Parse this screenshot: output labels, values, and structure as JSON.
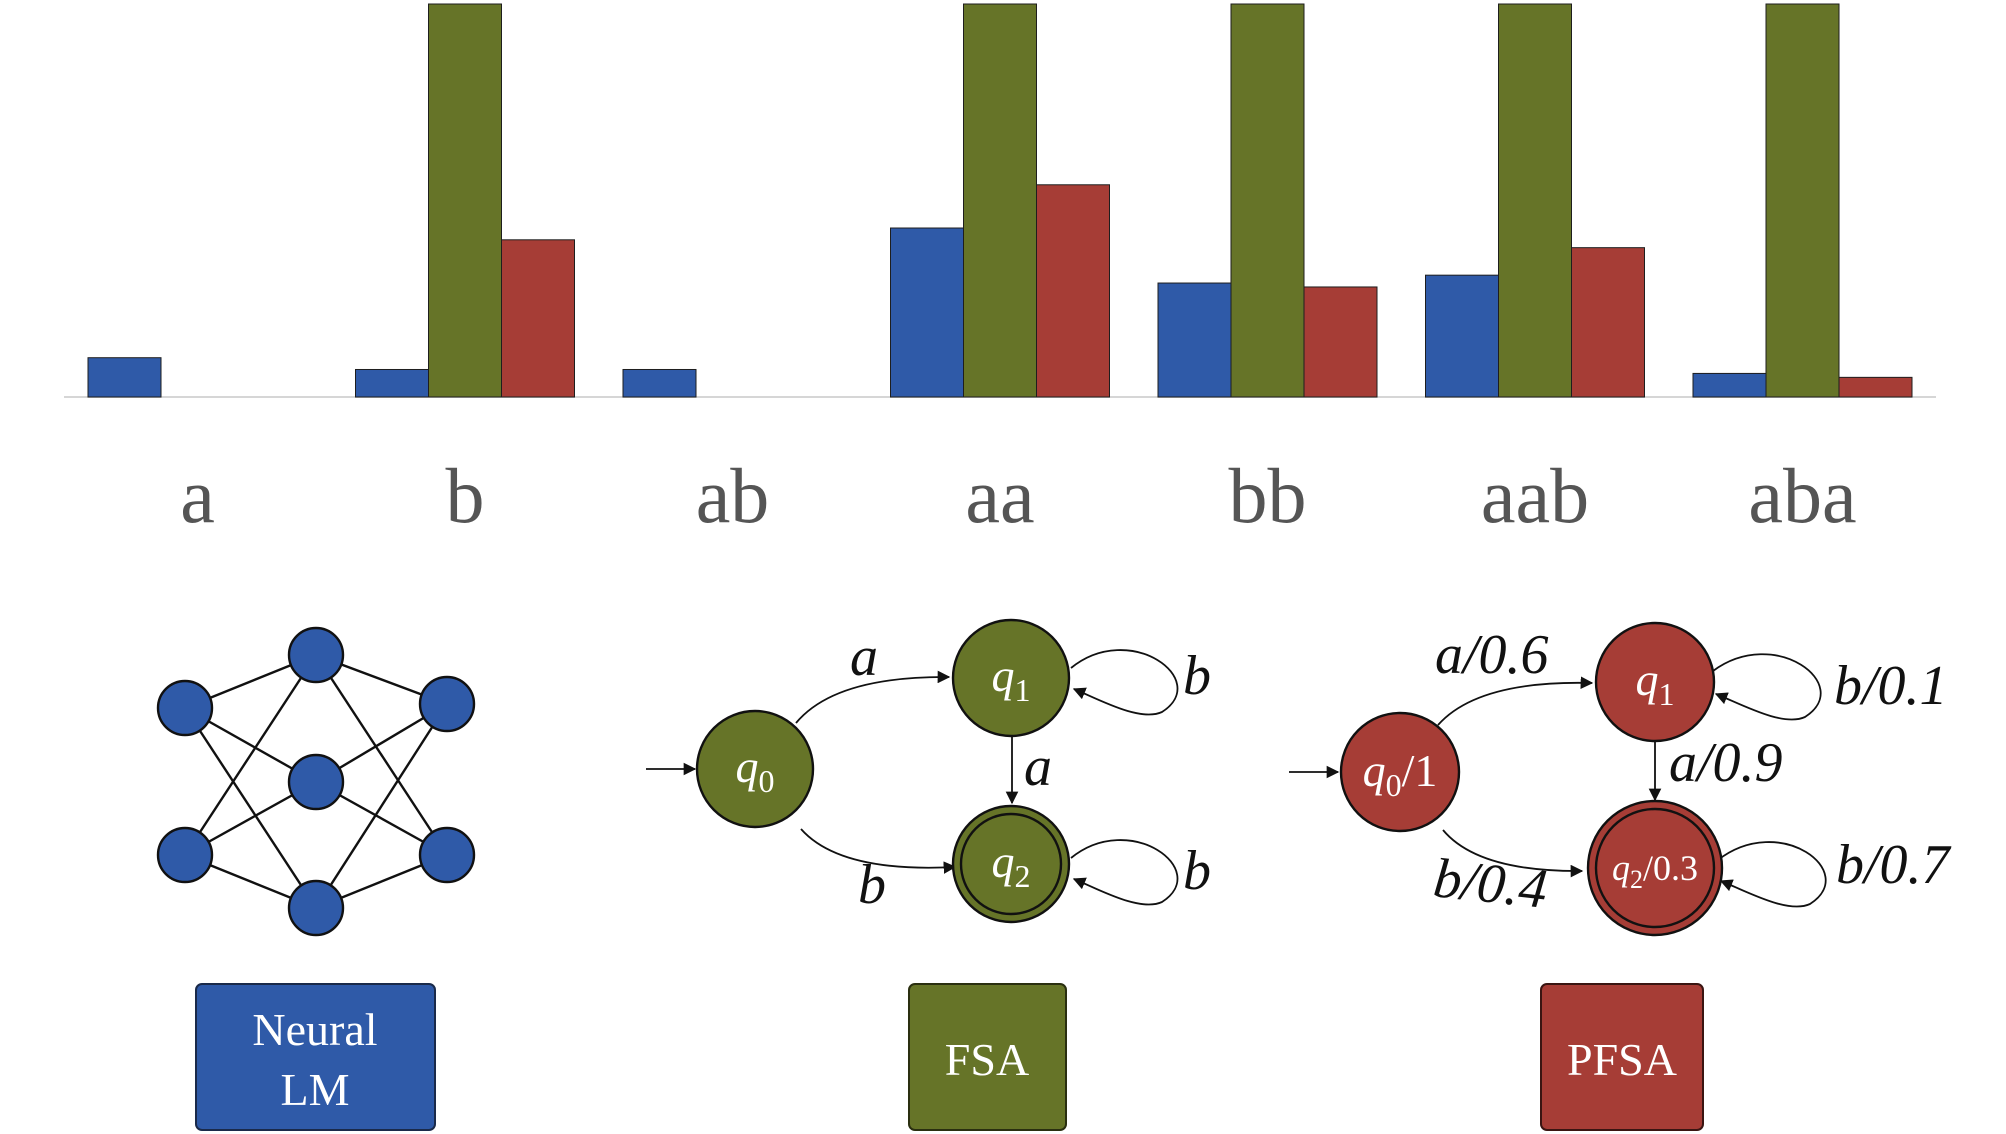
{
  "colors": {
    "neural": "#2f5aa8",
    "fsa": "#667428",
    "pfsa": "#a63d36",
    "axis": "#d6d6d6",
    "category_text": "#555555"
  },
  "chart_data": {
    "type": "bar",
    "categories": [
      "a",
      "b",
      "ab",
      "aa",
      "bb",
      "aab",
      "aba"
    ],
    "series": [
      {
        "key": "neural",
        "values": [
          0.1,
          0.07,
          0.07,
          0.43,
          0.29,
          0.31,
          0.06
        ]
      },
      {
        "key": "fsa",
        "values": [
          0,
          1.0,
          0,
          1.0,
          1.0,
          1.0,
          1.0
        ]
      },
      {
        "key": "pfsa",
        "values": [
          0,
          0.4,
          0,
          0.54,
          0.28,
          0.38,
          0.05
        ]
      }
    ],
    "ylim": [
      0,
      1.0
    ],
    "grid": false,
    "legend": "none"
  },
  "neural": {
    "icon": "neural-network-icon",
    "box_line1": "Neural",
    "box_line2": "LM"
  },
  "fsa": {
    "box_label": "FSA",
    "states": [
      {
        "name": "q",
        "sub": "0"
      },
      {
        "name": "q",
        "sub": "1"
      },
      {
        "name": "q",
        "sub": "2"
      }
    ],
    "edges": {
      "q0_q1": "a",
      "q0_q2": "b",
      "q1_q2": "a",
      "q1_loop": "b",
      "q2_loop": "b"
    }
  },
  "pfsa": {
    "box_label": "PFSA",
    "states": [
      {
        "name": "q",
        "sub": "0",
        "suffix": "/1"
      },
      {
        "name": "q",
        "sub": "1",
        "suffix": ""
      },
      {
        "name": "q",
        "sub": "2",
        "suffix": "/0.3"
      }
    ],
    "edges": {
      "q0_q1": "a/0.6",
      "q0_q2": "b/0.4",
      "q1_q2": "a/0.9",
      "q1_loop": "b/0.1",
      "q2_loop": "b/0.7"
    }
  }
}
